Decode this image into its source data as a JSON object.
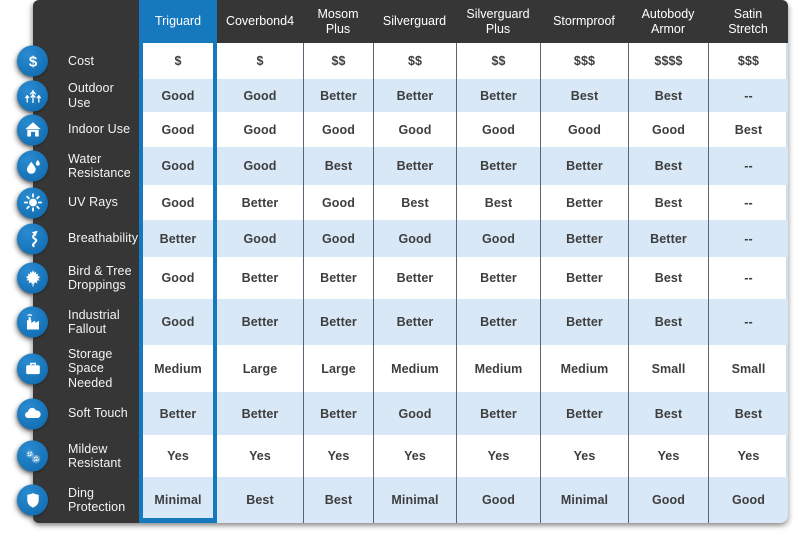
{
  "widget": {
    "name": "Car Cover Comparison Chart",
    "selected_column": "Triguard"
  },
  "columns": [
    {
      "label": "Triguard",
      "selected": true
    },
    {
      "label": "Coverbond4",
      "selected": false
    },
    {
      "label": "Mosom Plus",
      "selected": false
    },
    {
      "label": "Silverguard",
      "selected": false
    },
    {
      "label": "Silverguard Plus",
      "selected": false
    },
    {
      "label": "Stormproof",
      "selected": false
    },
    {
      "label": "Autobody Armor",
      "selected": false
    },
    {
      "label": "Satin Stretch",
      "selected": false
    }
  ],
  "rows": [
    {
      "label": "Cost",
      "icon": "dollar-icon",
      "values": [
        "$",
        "$",
        "$$",
        "$$",
        "$$",
        "$$$",
        "$$$$",
        "$$$"
      ]
    },
    {
      "label": "Outdoor Use",
      "icon": "trees-icon",
      "values": [
        "Good",
        "Good",
        "Better",
        "Better",
        "Better",
        "Best",
        "Best",
        "--"
      ]
    },
    {
      "label": "Indoor Use",
      "icon": "house-icon",
      "values": [
        "Good",
        "Good",
        "Good",
        "Good",
        "Good",
        "Good",
        "Good",
        "Best"
      ]
    },
    {
      "label": "Water Resistance",
      "icon": "water-drops-icon",
      "values": [
        "Good",
        "Good",
        "Best",
        "Better",
        "Better",
        "Better",
        "Best",
        "--"
      ]
    },
    {
      "label": "UV Rays",
      "icon": "sun-icon",
      "values": [
        "Good",
        "Better",
        "Good",
        "Best",
        "Best",
        "Better",
        "Best",
        "--"
      ]
    },
    {
      "label": "Breathability",
      "icon": "airflow-arrow-icon",
      "values": [
        "Better",
        "Good",
        "Good",
        "Good",
        "Good",
        "Better",
        "Better",
        "--"
      ]
    },
    {
      "label": "Bird & Tree Droppings",
      "icon": "maple-leaf-icon",
      "values": [
        "Good",
        "Better",
        "Better",
        "Better",
        "Better",
        "Better",
        "Best",
        "--"
      ]
    },
    {
      "label": "Industrial Fallout",
      "icon": "factory-icon",
      "values": [
        "Good",
        "Better",
        "Better",
        "Better",
        "Better",
        "Better",
        "Best",
        "--"
      ]
    },
    {
      "label": "Storage Space Needed",
      "icon": "suitcase-icon",
      "values": [
        "Medium",
        "Large",
        "Large",
        "Medium",
        "Medium",
        "Medium",
        "Small",
        "Small"
      ]
    },
    {
      "label": "Soft Touch",
      "icon": "cloud-icon",
      "values": [
        "Better",
        "Better",
        "Better",
        "Good",
        "Better",
        "Better",
        "Best",
        "Best"
      ]
    },
    {
      "label": "Mildew Resistant",
      "icon": "spores-icon",
      "values": [
        "Yes",
        "Yes",
        "Yes",
        "Yes",
        "Yes",
        "Yes",
        "Yes",
        "Yes"
      ]
    },
    {
      "label": "Ding Protection",
      "icon": "shield-icon",
      "values": [
        "Minimal",
        "Best",
        "Best",
        "Minimal",
        "Good",
        "Minimal",
        "Good",
        "Good"
      ]
    }
  ],
  "colors": {
    "accent": "#1678bd",
    "dark_panel": "#363636",
    "row_alt": "#d8e8f6",
    "separator": "#566476",
    "cell_text": "#3e3e3e"
  }
}
